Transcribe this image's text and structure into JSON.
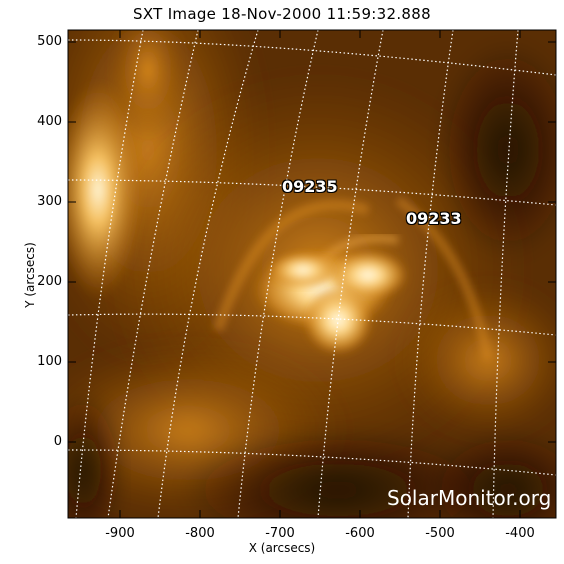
{
  "title": "SXT Image 18-Nov-2000 11:59:32.888",
  "x_axis": {
    "label": "X (arcsecs)",
    "ticks": [
      "-900",
      "-800",
      "-700",
      "-600",
      "-500",
      "-400"
    ],
    "range": [
      -965,
      -355
    ]
  },
  "y_axis": {
    "label": "Y (arcsecs)",
    "ticks": [
      "500",
      "400",
      "300",
      "200",
      "100",
      "0"
    ],
    "range": [
      -95,
      515
    ]
  },
  "active_regions": [
    {
      "id": "09235",
      "x": -678,
      "y": 316
    },
    {
      "id": "09233",
      "x": -520,
      "y": 281
    }
  ],
  "watermark": "SolarMonitor.org",
  "colors": {
    "background": "#3a1c00",
    "bright": "#fff3d6",
    "mid": "#c8780f",
    "grid": "#ffffff"
  }
}
